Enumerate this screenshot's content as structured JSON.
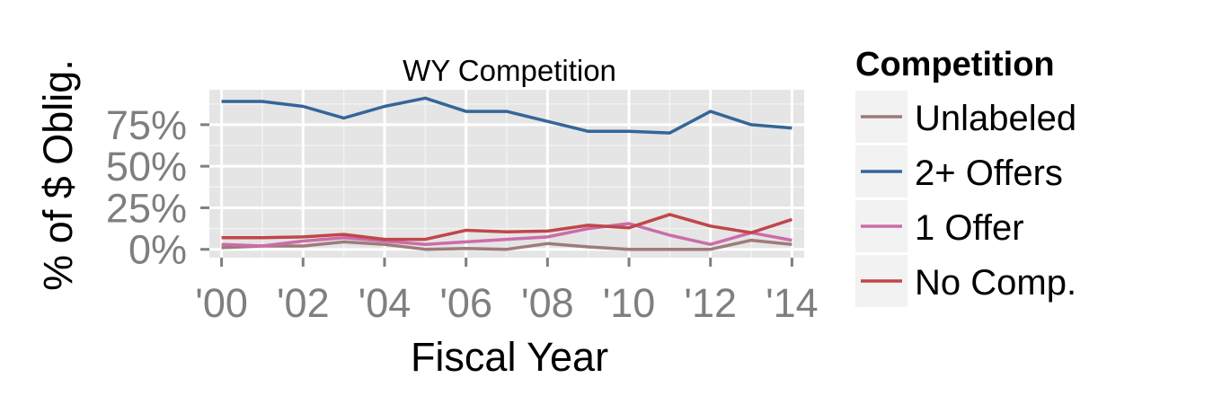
{
  "chart_data": {
    "type": "line",
    "title": "WY Competition",
    "xlabel": "Fiscal Year",
    "ylabel": "% of $ Oblig.",
    "x": [
      2000,
      2001,
      2002,
      2003,
      2004,
      2005,
      2006,
      2007,
      2008,
      2009,
      2010,
      2011,
      2012,
      2013,
      2014
    ],
    "xlim": [
      1999.7,
      2014.3
    ],
    "ylim": [
      -0.05,
      0.96
    ],
    "xticks": [
      2000,
      2002,
      2004,
      2006,
      2008,
      2010,
      2012,
      2014
    ],
    "xtick_labels": [
      "'00",
      "'02",
      "'04",
      "'06",
      "'08",
      "'10",
      "'12",
      "'14"
    ],
    "yticks": [
      0,
      0.25,
      0.5,
      0.75
    ],
    "ytick_labels": [
      "0%",
      "25%",
      "50%",
      "75%"
    ],
    "grid": true,
    "legend": {
      "title": "Competition",
      "position": "right"
    },
    "series": [
      {
        "name": "Unlabeled",
        "color": "#9E7B7B",
        "values": [
          0.01,
          0.02,
          0.02,
          0.045,
          0.03,
          0.0,
          0.005,
          0.0,
          0.035,
          0.015,
          0.0,
          0.0,
          0.0,
          0.055,
          0.03
        ]
      },
      {
        "name": "2+ Offers",
        "color": "#336699",
        "values": [
          0.89,
          0.89,
          0.86,
          0.79,
          0.86,
          0.91,
          0.83,
          0.83,
          0.77,
          0.71,
          0.71,
          0.7,
          0.83,
          0.75,
          0.73
        ]
      },
      {
        "name": "1 Offer",
        "color": "#CC6CAA",
        "values": [
          0.03,
          0.02,
          0.05,
          0.07,
          0.05,
          0.03,
          0.045,
          0.06,
          0.075,
          0.125,
          0.155,
          0.085,
          0.03,
          0.1,
          0.055
        ]
      },
      {
        "name": "No Comp.",
        "color": "#C0464A",
        "values": [
          0.07,
          0.07,
          0.075,
          0.09,
          0.06,
          0.06,
          0.115,
          0.105,
          0.11,
          0.145,
          0.13,
          0.21,
          0.14,
          0.1,
          0.18
        ]
      }
    ]
  }
}
